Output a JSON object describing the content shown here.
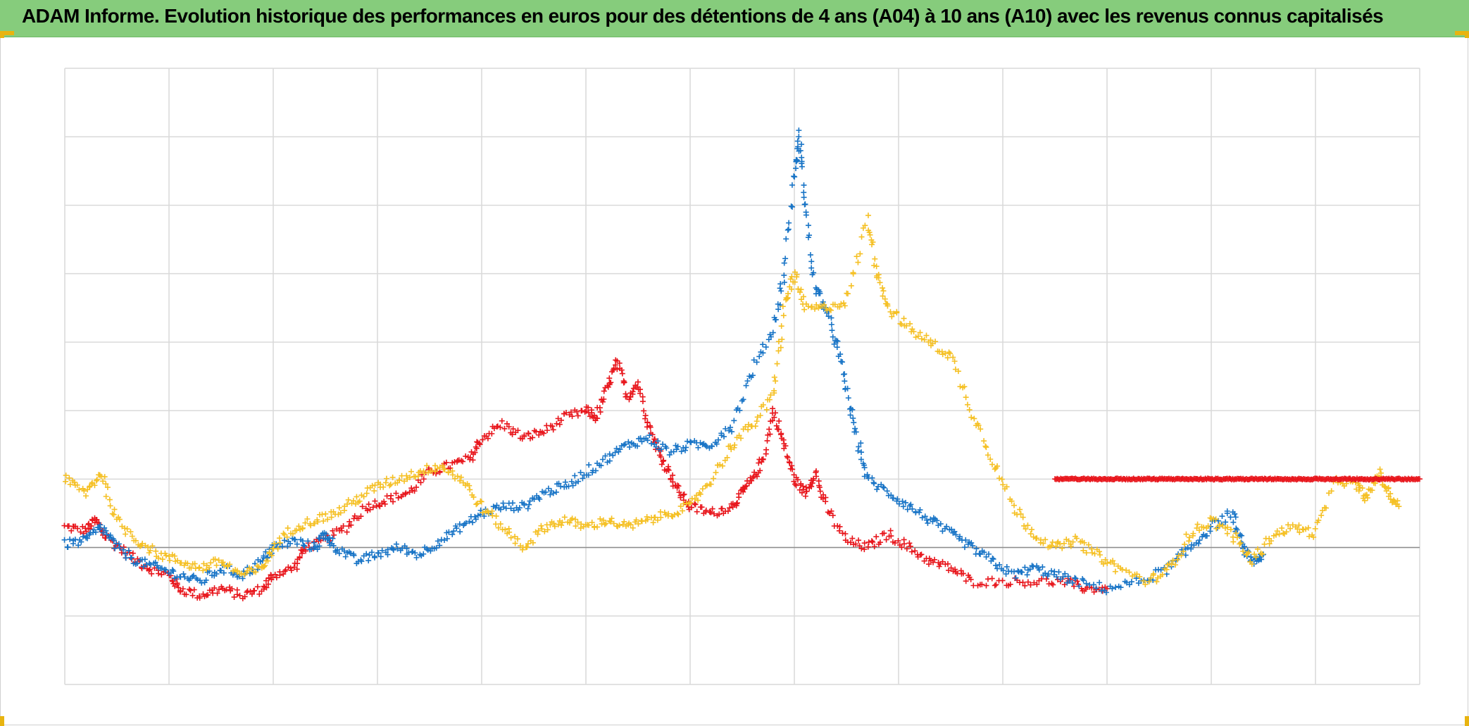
{
  "header": {
    "title": "ADAM Informe. Evolution historique des performances en euros pour des détentions de 4 ans (A04) à 10 ans (A10) avec les revenus connus capitalisés"
  },
  "chart_data": {
    "type": "scatter",
    "title": "ADAM Informe. Evolution historique des performances en euros pour des détentions de 4 ans (A04) à 10 ans (A10) avec les revenus connus capitalisés",
    "xlabel": "",
    "ylabel": "",
    "xlim": [
      0,
      13
    ],
    "ylim": [
      -2,
      7
    ],
    "x_gridlines": 13,
    "y_gridlines": 9,
    "baseline_y": 0,
    "grid": true,
    "tick_labels_visible": false,
    "legend": "none",
    "marker": "plus",
    "series": [
      {
        "color": "#e8161c",
        "points": [
          [
            0,
            0.3
          ],
          [
            0.2,
            0.25
          ],
          [
            0.3,
            0.4
          ],
          [
            0.4,
            0.15
          ],
          [
            0.6,
            -0.1
          ],
          [
            0.8,
            -0.3
          ],
          [
            1.0,
            -0.4
          ],
          [
            1.1,
            -0.6
          ],
          [
            1.3,
            -0.7
          ],
          [
            1.5,
            -0.6
          ],
          [
            1.7,
            -0.7
          ],
          [
            1.9,
            -0.6
          ],
          [
            2.0,
            -0.4
          ],
          [
            2.2,
            -0.3
          ],
          [
            2.3,
            0.0
          ],
          [
            2.5,
            0.1
          ],
          [
            2.7,
            0.3
          ],
          [
            2.9,
            0.6
          ],
          [
            3.1,
            0.7
          ],
          [
            3.3,
            0.8
          ],
          [
            3.5,
            1.1
          ],
          [
            3.7,
            1.2
          ],
          [
            3.9,
            1.3
          ],
          [
            4.0,
            1.6
          ],
          [
            4.2,
            1.8
          ],
          [
            4.4,
            1.6
          ],
          [
            4.6,
            1.7
          ],
          [
            4.8,
            1.9
          ],
          [
            5.0,
            2.0
          ],
          [
            5.1,
            1.9
          ],
          [
            5.2,
            2.3
          ],
          [
            5.3,
            2.7
          ],
          [
            5.4,
            2.2
          ],
          [
            5.5,
            2.4
          ],
          [
            5.6,
            1.8
          ],
          [
            5.7,
            1.4
          ],
          [
            5.8,
            1.1
          ],
          [
            5.9,
            0.8
          ],
          [
            6.0,
            0.6
          ],
          [
            6.2,
            0.5
          ],
          [
            6.4,
            0.6
          ],
          [
            6.5,
            0.8
          ],
          [
            6.6,
            1.0
          ],
          [
            6.7,
            1.3
          ],
          [
            6.8,
            2.0
          ],
          [
            6.9,
            1.5
          ],
          [
            7.0,
            1.0
          ],
          [
            7.1,
            0.8
          ],
          [
            7.2,
            1.1
          ],
          [
            7.3,
            0.6
          ],
          [
            7.5,
            0.1
          ],
          [
            7.7,
            0.0
          ],
          [
            7.9,
            0.2
          ],
          [
            8.1,
            0.0
          ],
          [
            8.3,
            -0.2
          ],
          [
            8.5,
            -0.3
          ],
          [
            8.7,
            -0.5
          ],
          [
            9.0,
            -0.5
          ],
          [
            9.3,
            -0.5
          ],
          [
            9.6,
            -0.5
          ],
          [
            9.8,
            -0.6
          ],
          [
            10.0,
            -0.6
          ]
        ]
      },
      {
        "color": "#1874c6",
        "points": [
          [
            0,
            0.05
          ],
          [
            0.2,
            0.1
          ],
          [
            0.35,
            0.3
          ],
          [
            0.5,
            0.0
          ],
          [
            0.7,
            -0.2
          ],
          [
            0.9,
            -0.3
          ],
          [
            1.1,
            -0.4
          ],
          [
            1.3,
            -0.5
          ],
          [
            1.5,
            -0.3
          ],
          [
            1.7,
            -0.4
          ],
          [
            1.9,
            -0.2
          ],
          [
            2.0,
            0.0
          ],
          [
            2.2,
            0.1
          ],
          [
            2.4,
            0.0
          ],
          [
            2.5,
            0.2
          ],
          [
            2.6,
            0.0
          ],
          [
            2.8,
            -0.2
          ],
          [
            3.0,
            -0.1
          ],
          [
            3.2,
            0.0
          ],
          [
            3.4,
            -0.1
          ],
          [
            3.6,
            0.1
          ],
          [
            3.8,
            0.3
          ],
          [
            4.0,
            0.5
          ],
          [
            4.2,
            0.6
          ],
          [
            4.4,
            0.6
          ],
          [
            4.6,
            0.8
          ],
          [
            4.8,
            0.9
          ],
          [
            5.0,
            1.1
          ],
          [
            5.2,
            1.3
          ],
          [
            5.4,
            1.5
          ],
          [
            5.6,
            1.6
          ],
          [
            5.8,
            1.4
          ],
          [
            6.0,
            1.5
          ],
          [
            6.2,
            1.5
          ],
          [
            6.4,
            1.8
          ],
          [
            6.6,
            2.6
          ],
          [
            6.8,
            3.2
          ],
          [
            6.9,
            4.0
          ],
          [
            7.0,
            5.5
          ],
          [
            7.05,
            6.0
          ],
          [
            7.1,
            5.0
          ],
          [
            7.2,
            3.8
          ],
          [
            7.3,
            3.5
          ],
          [
            7.4,
            3.0
          ],
          [
            7.5,
            2.3
          ],
          [
            7.6,
            1.6
          ],
          [
            7.7,
            1.0
          ],
          [
            7.9,
            0.8
          ],
          [
            8.1,
            0.6
          ],
          [
            8.3,
            0.4
          ],
          [
            8.5,
            0.2
          ],
          [
            8.7,
            0.0
          ],
          [
            8.9,
            -0.2
          ],
          [
            9.1,
            -0.4
          ],
          [
            9.3,
            -0.3
          ],
          [
            9.5,
            -0.4
          ],
          [
            9.7,
            -0.5
          ],
          [
            10.0,
            -0.6
          ],
          [
            10.3,
            -0.5
          ],
          [
            10.6,
            -0.3
          ],
          [
            10.8,
            0.0
          ],
          [
            11.0,
            0.3
          ],
          [
            11.2,
            0.5
          ],
          [
            11.3,
            0.0
          ],
          [
            11.4,
            -0.2
          ],
          [
            11.5,
            -0.1
          ]
        ]
      },
      {
        "color": "#f5c024",
        "points": [
          [
            0,
            1.0
          ],
          [
            0.2,
            0.8
          ],
          [
            0.35,
            1.1
          ],
          [
            0.5,
            0.4
          ],
          [
            0.7,
            0.1
          ],
          [
            0.9,
            -0.1
          ],
          [
            1.1,
            -0.2
          ],
          [
            1.3,
            -0.3
          ],
          [
            1.5,
            -0.2
          ],
          [
            1.7,
            -0.4
          ],
          [
            1.9,
            -0.3
          ],
          [
            2.0,
            0.0
          ],
          [
            2.2,
            0.3
          ],
          [
            2.4,
            0.4
          ],
          [
            2.6,
            0.5
          ],
          [
            2.8,
            0.7
          ],
          [
            3.0,
            0.9
          ],
          [
            3.2,
            1.0
          ],
          [
            3.4,
            1.1
          ],
          [
            3.6,
            1.2
          ],
          [
            3.8,
            1.0
          ],
          [
            4.0,
            0.6
          ],
          [
            4.2,
            0.3
          ],
          [
            4.4,
            0.0
          ],
          [
            4.6,
            0.3
          ],
          [
            4.8,
            0.4
          ],
          [
            5.0,
            0.3
          ],
          [
            5.2,
            0.4
          ],
          [
            5.4,
            0.3
          ],
          [
            5.6,
            0.4
          ],
          [
            5.8,
            0.5
          ],
          [
            6.0,
            0.6
          ],
          [
            6.2,
            1.0
          ],
          [
            6.4,
            1.5
          ],
          [
            6.6,
            1.8
          ],
          [
            6.8,
            2.2
          ],
          [
            6.9,
            3.5
          ],
          [
            7.0,
            4.0
          ],
          [
            7.1,
            3.5
          ],
          [
            7.3,
            3.5
          ],
          [
            7.5,
            3.6
          ],
          [
            7.7,
            4.8
          ],
          [
            7.8,
            4.0
          ],
          [
            7.9,
            3.5
          ],
          [
            8.1,
            3.2
          ],
          [
            8.3,
            3.0
          ],
          [
            8.5,
            2.8
          ],
          [
            8.7,
            2.0
          ],
          [
            8.9,
            1.3
          ],
          [
            9.1,
            0.6
          ],
          [
            9.3,
            0.2
          ],
          [
            9.5,
            0.0
          ],
          [
            9.7,
            0.1
          ],
          [
            9.9,
            -0.1
          ],
          [
            10.1,
            -0.3
          ],
          [
            10.4,
            -0.5
          ],
          [
            10.6,
            -0.3
          ],
          [
            10.8,
            0.2
          ],
          [
            11.0,
            0.4
          ],
          [
            11.2,
            0.2
          ],
          [
            11.4,
            -0.2
          ],
          [
            11.6,
            0.2
          ],
          [
            11.8,
            0.3
          ],
          [
            12.0,
            0.2
          ],
          [
            12.2,
            1.0
          ],
          [
            12.4,
            0.9
          ],
          [
            12.5,
            0.7
          ],
          [
            12.6,
            1.1
          ],
          [
            12.7,
            0.8
          ],
          [
            12.8,
            0.6
          ]
        ]
      },
      {
        "color": "#e8161c",
        "shape": "flat",
        "points": [
          [
            9.5,
            1.0
          ],
          [
            13.0,
            1.0
          ]
        ]
      }
    ]
  }
}
